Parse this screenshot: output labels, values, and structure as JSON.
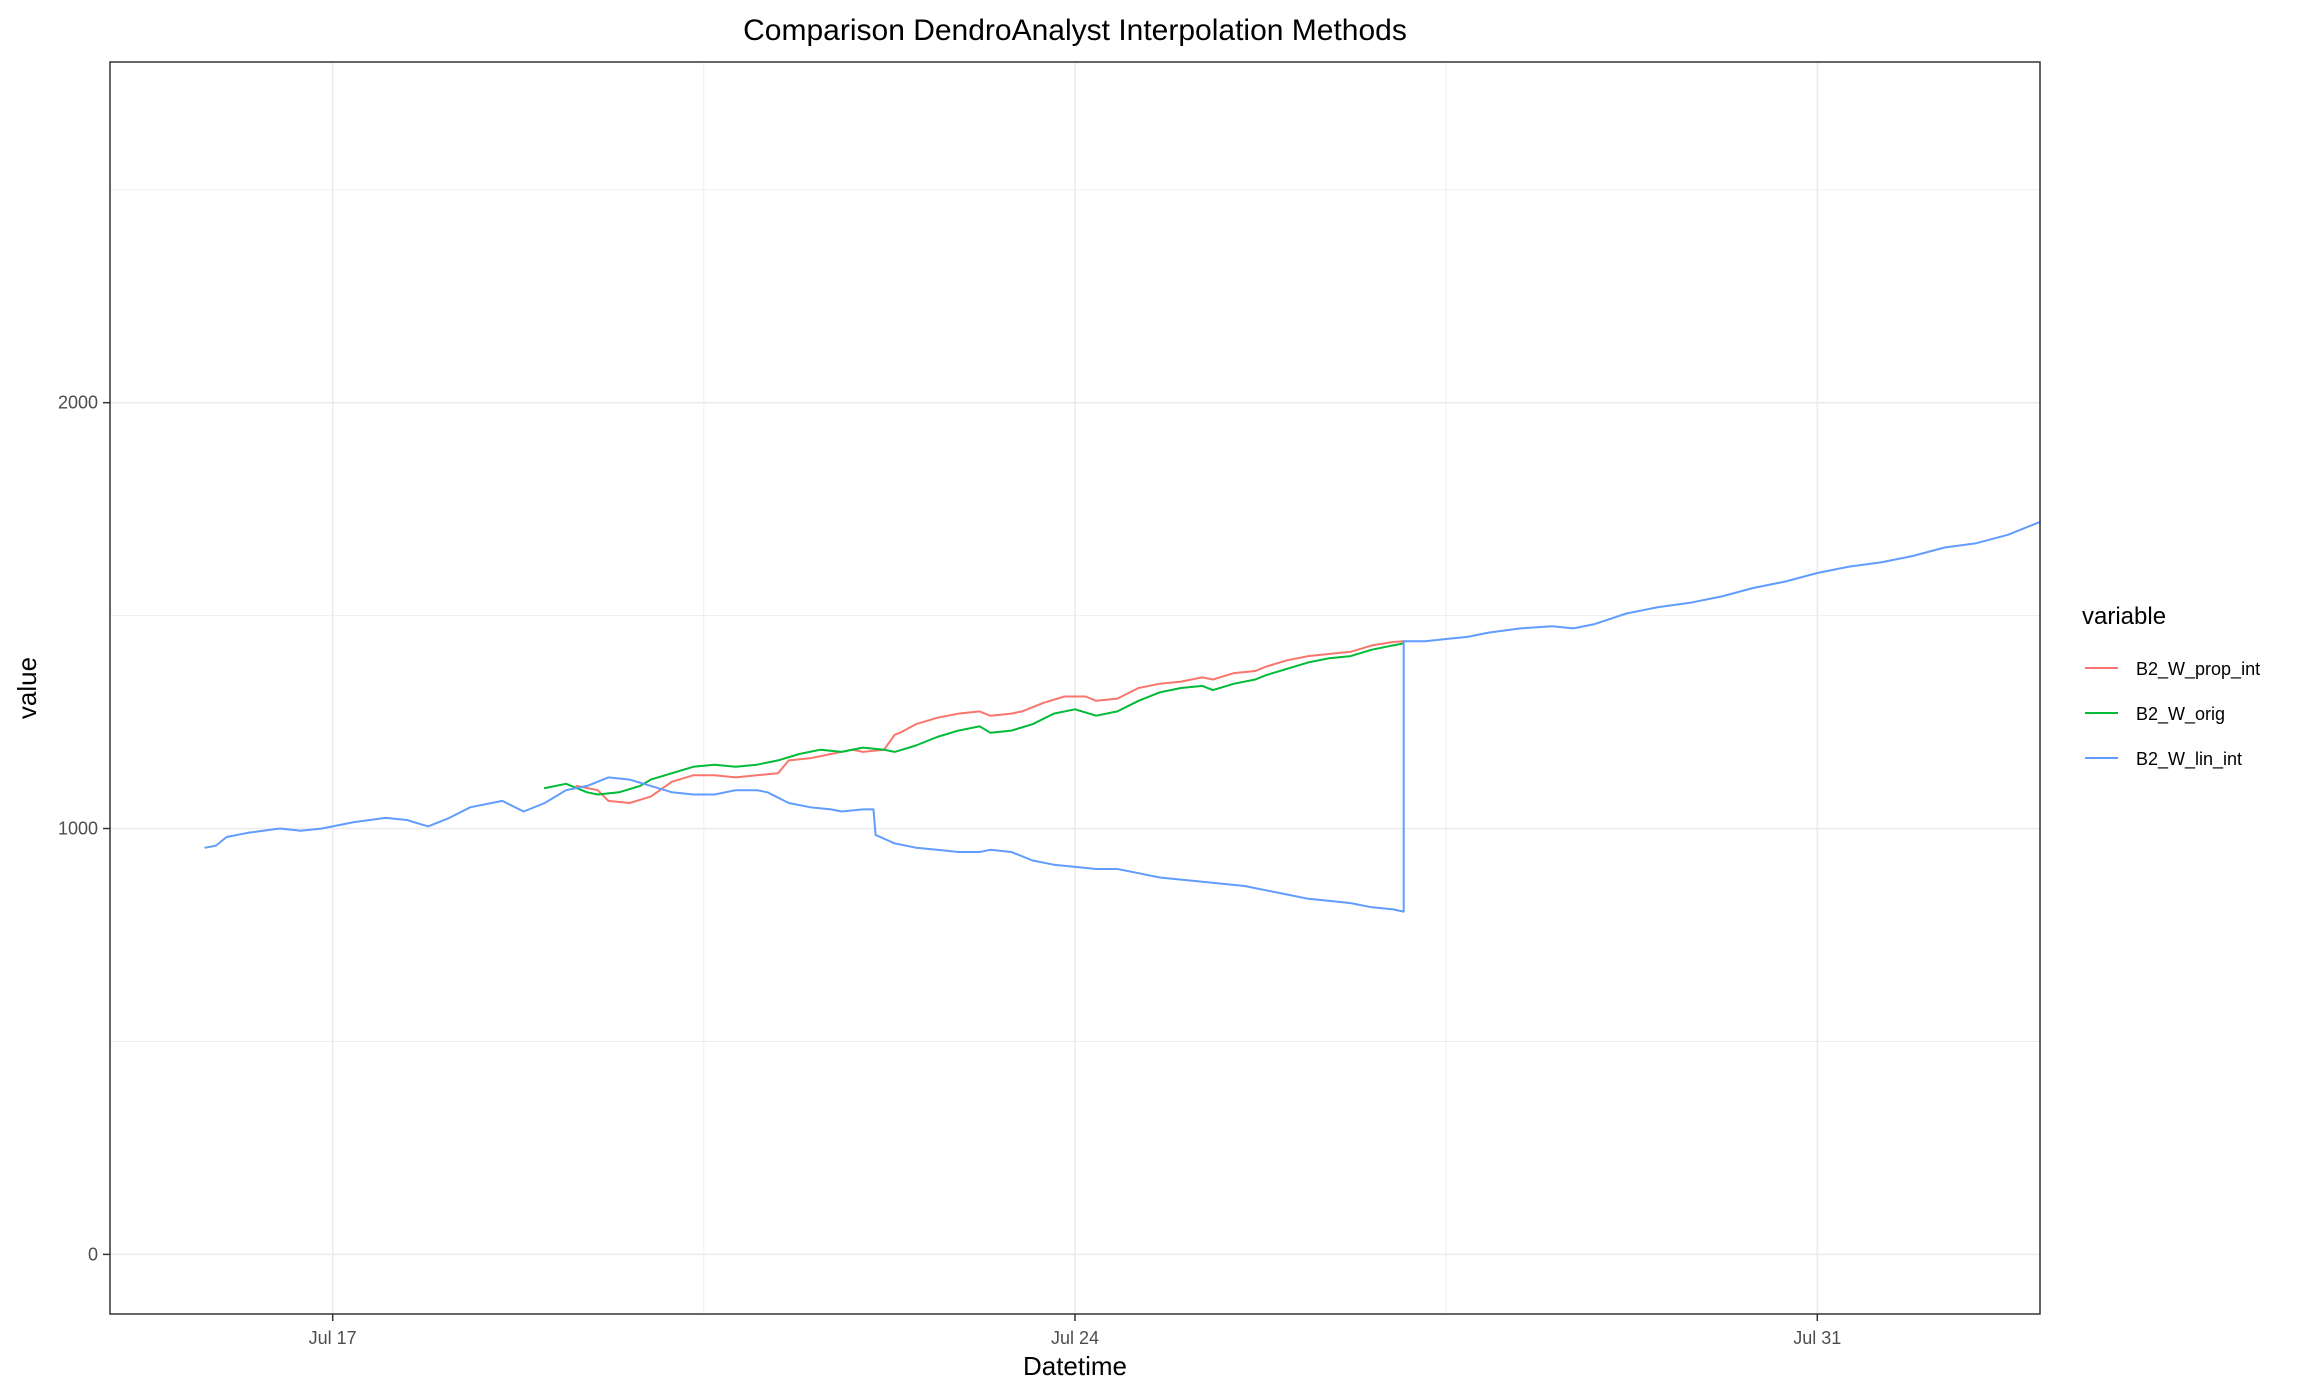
{
  "chart_data": {
    "type": "line",
    "title": "Comparison DendroAnalyst Interpolation Methods",
    "xlabel": "Datetime",
    "ylabel": "value",
    "x_ticks": [
      {
        "label": "Jul 17",
        "day": 17
      },
      {
        "label": "Jul 24",
        "day": 24
      },
      {
        "label": "Jul 31",
        "day": 31
      }
    ],
    "x_range_days": [
      14.9,
      33.1
    ],
    "y_ticks": [
      0,
      1000,
      2000
    ],
    "ylim": [
      -140,
      2800
    ],
    "grid": true,
    "legend": {
      "title": "variable",
      "position": "right"
    },
    "series": [
      {
        "name": "B2_W_prop_int",
        "color": "#F8766D",
        "points": [
          [
            19.3,
            1100
          ],
          [
            19.5,
            1090
          ],
          [
            19.6,
            1065
          ],
          [
            19.8,
            1060
          ],
          [
            20.0,
            1075
          ],
          [
            20.2,
            1110
          ],
          [
            20.4,
            1125
          ],
          [
            20.6,
            1125
          ],
          [
            20.8,
            1120
          ],
          [
            21.0,
            1125
          ],
          [
            21.2,
            1130
          ],
          [
            21.3,
            1160
          ],
          [
            21.5,
            1165
          ],
          [
            21.7,
            1175
          ],
          [
            21.9,
            1185
          ],
          [
            22.0,
            1180
          ],
          [
            22.2,
            1185
          ],
          [
            22.3,
            1220
          ],
          [
            22.35,
            1225
          ],
          [
            22.5,
            1245
          ],
          [
            22.7,
            1260
          ],
          [
            22.9,
            1270
          ],
          [
            23.1,
            1275
          ],
          [
            23.2,
            1265
          ],
          [
            23.4,
            1270
          ],
          [
            23.5,
            1275
          ],
          [
            23.7,
            1295
          ],
          [
            23.9,
            1310
          ],
          [
            24.1,
            1310
          ],
          [
            24.2,
            1300
          ],
          [
            24.4,
            1305
          ],
          [
            24.6,
            1330
          ],
          [
            24.8,
            1340
          ],
          [
            25.0,
            1345
          ],
          [
            25.2,
            1355
          ],
          [
            25.3,
            1350
          ],
          [
            25.5,
            1365
          ],
          [
            25.7,
            1370
          ],
          [
            25.8,
            1380
          ],
          [
            26.0,
            1395
          ],
          [
            26.2,
            1405
          ],
          [
            26.4,
            1410
          ],
          [
            26.6,
            1415
          ],
          [
            26.8,
            1430
          ],
          [
            27.0,
            1438
          ],
          [
            27.1,
            1440
          ]
        ]
      },
      {
        "name": "B2_W_orig",
        "color": "#00BA38",
        "points": [
          [
            19.0,
            1095
          ],
          [
            19.2,
            1105
          ],
          [
            19.4,
            1085
          ],
          [
            19.5,
            1080
          ],
          [
            19.7,
            1085
          ],
          [
            19.9,
            1100
          ],
          [
            20.0,
            1115
          ],
          [
            20.2,
            1130
          ],
          [
            20.4,
            1145
          ],
          [
            20.6,
            1150
          ],
          [
            20.8,
            1145
          ],
          [
            21.0,
            1150
          ],
          [
            21.2,
            1160
          ],
          [
            21.4,
            1175
          ],
          [
            21.6,
            1185
          ],
          [
            21.8,
            1180
          ],
          [
            22.0,
            1190
          ],
          [
            22.2,
            1185
          ],
          [
            22.3,
            1180
          ],
          [
            22.5,
            1195
          ],
          [
            22.7,
            1215
          ],
          [
            22.9,
            1230
          ],
          [
            23.1,
            1240
          ],
          [
            23.2,
            1225
          ],
          [
            23.4,
            1230
          ],
          [
            23.6,
            1245
          ],
          [
            23.8,
            1270
          ],
          [
            24.0,
            1280
          ],
          [
            24.2,
            1265
          ],
          [
            24.4,
            1275
          ],
          [
            24.6,
            1300
          ],
          [
            24.8,
            1320
          ],
          [
            25.0,
            1330
          ],
          [
            25.2,
            1335
          ],
          [
            25.3,
            1325
          ],
          [
            25.5,
            1340
          ],
          [
            25.7,
            1350
          ],
          [
            25.8,
            1360
          ],
          [
            26.0,
            1375
          ],
          [
            26.2,
            1390
          ],
          [
            26.4,
            1400
          ],
          [
            26.6,
            1405
          ],
          [
            26.8,
            1420
          ],
          [
            27.0,
            1430
          ],
          [
            27.1,
            1435
          ]
        ]
      },
      {
        "name": "B2_W_lin_int",
        "color": "#619CFF",
        "points": [
          [
            15.8,
            955
          ],
          [
            15.9,
            960
          ],
          [
            16.0,
            980
          ],
          [
            16.2,
            990
          ],
          [
            16.5,
            1000
          ],
          [
            16.7,
            995
          ],
          [
            16.9,
            1000
          ],
          [
            17.2,
            1015
          ],
          [
            17.5,
            1025
          ],
          [
            17.7,
            1020
          ],
          [
            17.9,
            1005
          ],
          [
            18.1,
            1025
          ],
          [
            18.3,
            1050
          ],
          [
            18.6,
            1065
          ],
          [
            18.8,
            1040
          ],
          [
            19.0,
            1060
          ],
          [
            19.2,
            1090
          ],
          [
            19.4,
            1100
          ],
          [
            19.6,
            1120
          ],
          [
            19.8,
            1115
          ],
          [
            20.0,
            1100
          ],
          [
            20.2,
            1085
          ],
          [
            20.4,
            1080
          ],
          [
            20.6,
            1080
          ],
          [
            20.8,
            1090
          ],
          [
            21.0,
            1090
          ],
          [
            21.1,
            1085
          ],
          [
            21.3,
            1060
          ],
          [
            21.5,
            1050
          ],
          [
            21.7,
            1045
          ],
          [
            21.8,
            1040
          ],
          [
            22.0,
            1045
          ],
          [
            22.1,
            1045
          ],
          [
            22.12,
            985
          ],
          [
            22.3,
            965
          ],
          [
            22.5,
            955
          ],
          [
            22.7,
            950
          ],
          [
            22.9,
            945
          ],
          [
            23.1,
            945
          ],
          [
            23.2,
            950
          ],
          [
            23.4,
            945
          ],
          [
            23.6,
            925
          ],
          [
            23.8,
            915
          ],
          [
            24.0,
            910
          ],
          [
            24.2,
            905
          ],
          [
            24.4,
            905
          ],
          [
            24.6,
            895
          ],
          [
            24.8,
            885
          ],
          [
            25.0,
            880
          ],
          [
            25.2,
            875
          ],
          [
            25.4,
            870
          ],
          [
            25.6,
            865
          ],
          [
            25.8,
            855
          ],
          [
            26.0,
            845
          ],
          [
            26.2,
            835
          ],
          [
            26.4,
            830
          ],
          [
            26.6,
            825
          ],
          [
            26.8,
            815
          ],
          [
            27.0,
            810
          ],
          [
            27.1,
            805
          ],
          [
            27.1,
            1440
          ],
          [
            27.3,
            1440
          ],
          [
            27.5,
            1445
          ],
          [
            27.7,
            1450
          ],
          [
            27.9,
            1460
          ],
          [
            28.2,
            1470
          ],
          [
            28.5,
            1475
          ],
          [
            28.7,
            1470
          ],
          [
            28.9,
            1480
          ],
          [
            29.2,
            1505
          ],
          [
            29.5,
            1520
          ],
          [
            29.8,
            1530
          ],
          [
            30.1,
            1545
          ],
          [
            30.4,
            1565
          ],
          [
            30.7,
            1580
          ],
          [
            31.0,
            1600
          ],
          [
            31.3,
            1615
          ],
          [
            31.6,
            1625
          ],
          [
            31.9,
            1640
          ],
          [
            32.2,
            1660
          ],
          [
            32.5,
            1670
          ],
          [
            32.8,
            1690
          ],
          [
            33.1,
            1720
          ]
        ]
      }
    ]
  }
}
